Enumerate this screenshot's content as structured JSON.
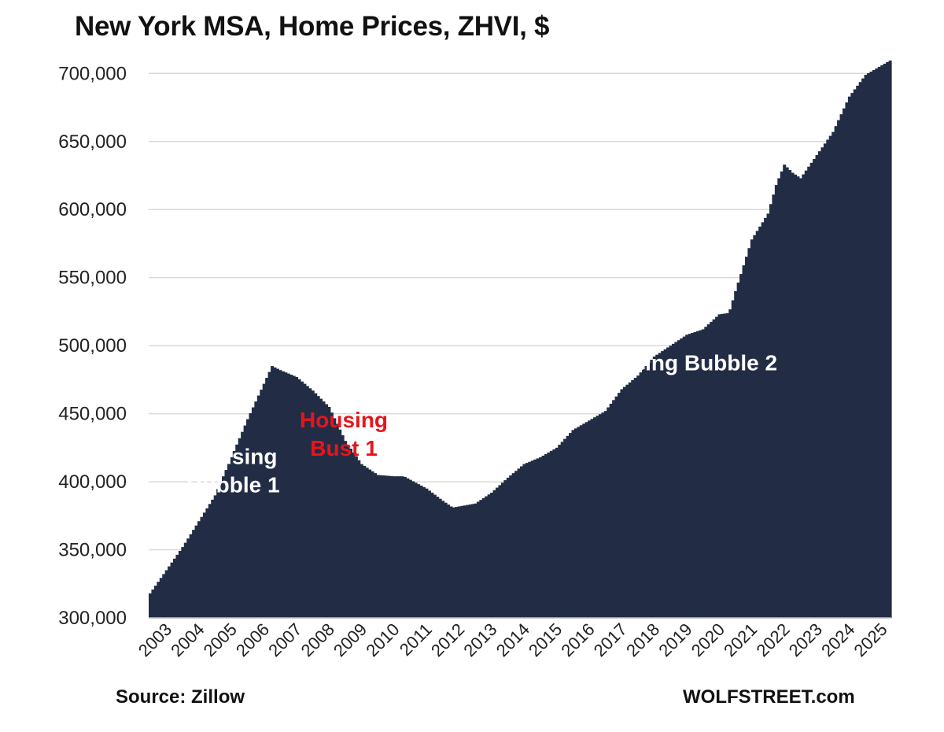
{
  "header": {
    "title": "New York MSA, Home Prices, ZHVI, $"
  },
  "footer": {
    "source": "Source: Zillow",
    "brand": "WOLFSTREET.com"
  },
  "chart_data": {
    "type": "bar",
    "title": "New York MSA, Home Prices, ZHVI, $",
    "xlabel": "",
    "ylabel": "",
    "ylim": [
      300000,
      710000
    ],
    "yticks": [
      300000,
      350000,
      400000,
      450000,
      500000,
      550000,
      600000,
      650000,
      700000
    ],
    "ytick_labels": [
      "300,000",
      "350,000",
      "400,000",
      "450,000",
      "500,000",
      "550,000",
      "600,000",
      "650,000",
      "700,000"
    ],
    "xtick_labels": [
      "2003",
      "2004",
      "2005",
      "2006",
      "2007",
      "2008",
      "2009",
      "2010",
      "2011",
      "2012",
      "2013",
      "2014",
      "2015",
      "2016",
      "2017",
      "2018",
      "2019",
      "2020",
      "2021",
      "2022",
      "2023",
      "2024",
      "2025"
    ],
    "grid": true,
    "series_name": "ZHVI",
    "bar_color": "#222d45",
    "frequency": "monthly",
    "start": "2003-01",
    "end": "2025-10",
    "anchor_points": [
      {
        "t": 2003.0,
        "value": 318000
      },
      {
        "t": 2004.0,
        "value": 352000
      },
      {
        "t": 2005.0,
        "value": 390000
      },
      {
        "t": 2006.0,
        "value": 446000
      },
      {
        "t": 2006.75,
        "value": 485000
      },
      {
        "t": 2007.0,
        "value": 482000
      },
      {
        "t": 2007.5,
        "value": 477000
      },
      {
        "t": 2008.0,
        "value": 467000
      },
      {
        "t": 2008.5,
        "value": 455000
      },
      {
        "t": 2009.0,
        "value": 430000
      },
      {
        "t": 2009.5,
        "value": 413000
      },
      {
        "t": 2010.0,
        "value": 405000
      },
      {
        "t": 2010.5,
        "value": 404000
      },
      {
        "t": 2010.8,
        "value": 404000
      },
      {
        "t": 2011.5,
        "value": 395000
      },
      {
        "t": 2012.0,
        "value": 386000
      },
      {
        "t": 2012.3,
        "value": 381000
      },
      {
        "t": 2013.0,
        "value": 384000
      },
      {
        "t": 2013.5,
        "value": 392000
      },
      {
        "t": 2014.0,
        "value": 403000
      },
      {
        "t": 2014.5,
        "value": 413000
      },
      {
        "t": 2015.0,
        "value": 418000
      },
      {
        "t": 2015.5,
        "value": 425000
      },
      {
        "t": 2016.0,
        "value": 438000
      },
      {
        "t": 2016.5,
        "value": 445000
      },
      {
        "t": 2017.0,
        "value": 452000
      },
      {
        "t": 2017.5,
        "value": 468000
      },
      {
        "t": 2018.0,
        "value": 478000
      },
      {
        "t": 2018.5,
        "value": 492000
      },
      {
        "t": 2019.0,
        "value": 500000
      },
      {
        "t": 2019.5,
        "value": 508000
      },
      {
        "t": 2020.0,
        "value": 512000
      },
      {
        "t": 2020.5,
        "value": 523000
      },
      {
        "t": 2020.8,
        "value": 524000
      },
      {
        "t": 2021.0,
        "value": 540000
      },
      {
        "t": 2021.5,
        "value": 578000
      },
      {
        "t": 2022.0,
        "value": 597000
      },
      {
        "t": 2022.25,
        "value": 618000
      },
      {
        "t": 2022.5,
        "value": 633000
      },
      {
        "t": 2022.75,
        "value": 627000
      },
      {
        "t": 2023.0,
        "value": 623000
      },
      {
        "t": 2023.5,
        "value": 640000
      },
      {
        "t": 2024.0,
        "value": 657000
      },
      {
        "t": 2024.5,
        "value": 683000
      },
      {
        "t": 2025.0,
        "value": 699000
      },
      {
        "t": 2025.5,
        "value": 706000
      },
      {
        "t": 2025.79,
        "value": 710000
      }
    ],
    "annotations": [
      {
        "lines": [
          "Housing",
          "Bubble 1"
        ],
        "color": "#ffffff",
        "t": 2005.6,
        "value": 413000
      },
      {
        "lines": [
          "Housing",
          "Bust 1"
        ],
        "color": "#e8141b",
        "t": 2009.0,
        "value": 440000
      },
      {
        "lines": [
          "Housing Bubble 2"
        ],
        "color": "#ffffff",
        "t": 2019.45,
        "value": 482000
      }
    ]
  }
}
